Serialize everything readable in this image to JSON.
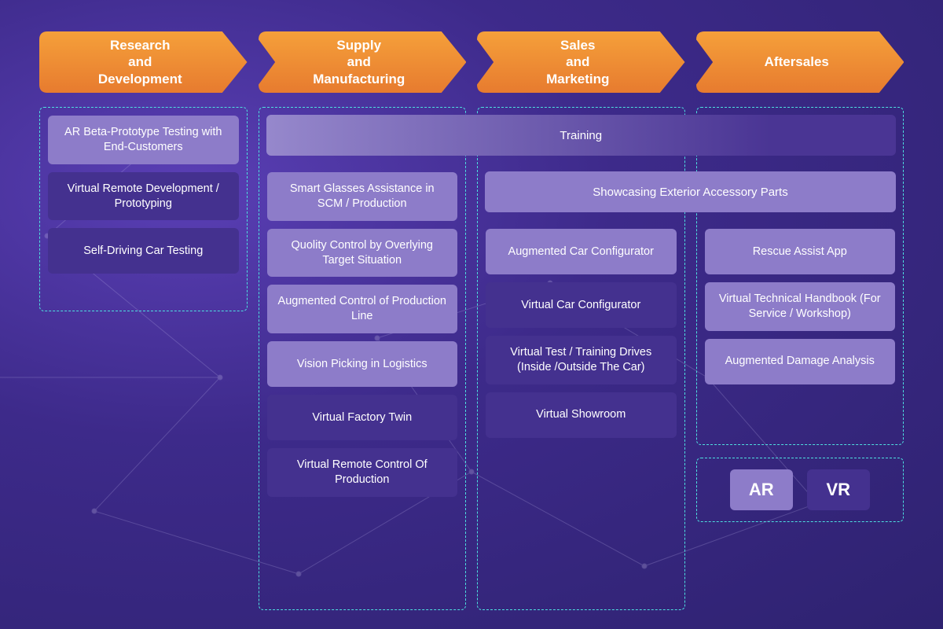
{
  "stages": [
    {
      "id": "rnd",
      "label": "Research\nand\nDevelopment"
    },
    {
      "id": "supply",
      "label": "Supply\nand\nManufacturing"
    },
    {
      "id": "sales",
      "label": "Sales\nand\nMarketing"
    },
    {
      "id": "after",
      "label": "Aftersales"
    }
  ],
  "arrow_gradient": {
    "from": "#f5a03a",
    "to": "#e77b2f"
  },
  "colors": {
    "ar": "#8d7cc9",
    "vr": "#44318f",
    "border_dashed": "#4ee0e0",
    "bg_from": "#5a3fb5",
    "bg_to": "#2e2270"
  },
  "spanning": {
    "training": {
      "label": "Training",
      "span_from_col": 2,
      "span_to_col": 4,
      "type": "gradient"
    },
    "showcase": {
      "label": "Showcasing Exterior Accessory Parts",
      "span_from_col": 3,
      "span_to_col": 4,
      "type": "ar"
    }
  },
  "columns": {
    "rnd": [
      {
        "label": "AR Beta-Prototype Testing with End-Customers",
        "type": "ar"
      },
      {
        "label": "Virtual Remote Development / Prototyping",
        "type": "vr"
      },
      {
        "label": "Self-Driving Car Testing",
        "type": "vr"
      }
    ],
    "supply": [
      {
        "label": "Smart Glasses Assistance in SCM / Production",
        "type": "ar"
      },
      {
        "label": "Quolity Control by Overlying Target Situation",
        "type": "ar"
      },
      {
        "label": "Augmented Control of Production Line",
        "type": "ar"
      },
      {
        "label": "Vision Picking in Logistics",
        "type": "ar"
      },
      {
        "label": "Virtual Factory Twin",
        "type": "vr"
      },
      {
        "label": "Virtual Remote Control Of Production",
        "type": "vr"
      }
    ],
    "sales": [
      {
        "label": "Augmented Car Configurator",
        "type": "ar"
      },
      {
        "label": "Virtual Car Configurator",
        "type": "vr"
      },
      {
        "label": "Virtual Test / Training Drives (Inside /Outside The Car)",
        "type": "vr"
      },
      {
        "label": "Virtual Showroom",
        "type": "vr"
      }
    ],
    "after": [
      {
        "label": "Rescue Assist App",
        "type": "ar"
      },
      {
        "label": "Virtual Technical Handbook (For Service / Workshop)",
        "type": "ar"
      },
      {
        "label": "Augmented Damage Analysis",
        "type": "ar"
      }
    ]
  },
  "legend": {
    "ar_label": "AR",
    "vr_label": "VR"
  }
}
